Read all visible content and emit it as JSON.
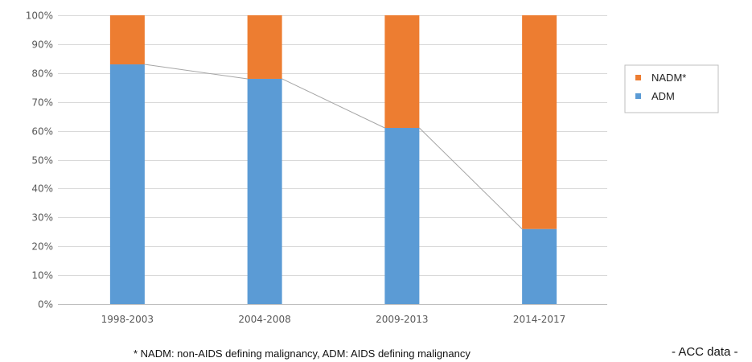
{
  "chart_data": {
    "type": "bar",
    "stacked": true,
    "categories": [
      "1998-2003",
      "2004-2008",
      "2009-2013",
      "2014-2017"
    ],
    "series": [
      {
        "name": "ADM",
        "color": "#5B9BD5",
        "values": [
          83,
          78,
          61,
          26
        ]
      },
      {
        "name": "NADM*",
        "color": "#ED7D31",
        "values": [
          17,
          22,
          39,
          74
        ]
      }
    ],
    "connector_line": {
      "series": "ADM",
      "color": "#a6a6a6"
    },
    "yticks": [
      "0%",
      "10%",
      "20%",
      "30%",
      "40%",
      "50%",
      "60%",
      "70%",
      "80%",
      "90%",
      "100%"
    ],
    "ylim": [
      0,
      100
    ],
    "grid": true,
    "legend": {
      "position": "right",
      "entries": [
        "NADM*",
        "ADM"
      ]
    }
  },
  "footnote": "* NADM: non-AIDS defining malignancy,  ADM: AIDS defining malignancy",
  "source": "- ACC data -"
}
